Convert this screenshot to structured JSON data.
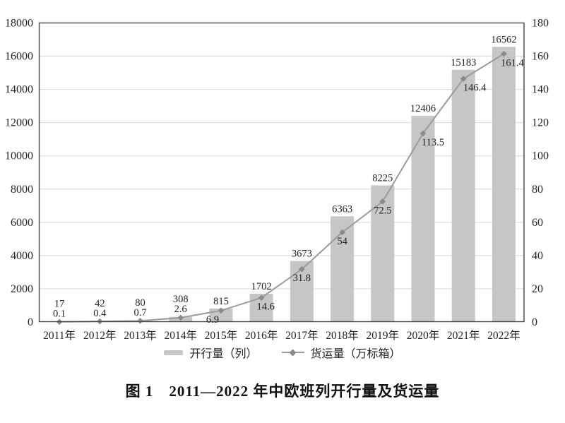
{
  "figure": {
    "caption": "图 1　2011—2022 年中欧班列开行量及货运量"
  },
  "legend": {
    "bar_label": "开行量（列）",
    "line_label": "货运量（万标箱）"
  },
  "chart_data": {
    "type": "combo-bar-line",
    "categories": [
      "2011年",
      "2012年",
      "2013年",
      "2014年",
      "2015年",
      "2016年",
      "2017年",
      "2018年",
      "2019年",
      "2020年",
      "2021年",
      "2022年"
    ],
    "series": [
      {
        "name": "开行量（列）",
        "type": "bar",
        "axis": "left",
        "values": [
          17,
          42,
          80,
          308,
          815,
          1702,
          3673,
          6363,
          8225,
          12406,
          15183,
          16562
        ],
        "color": "#c6c6c8"
      },
      {
        "name": "货运量（万标箱）",
        "type": "line",
        "axis": "right",
        "marker": "diamond",
        "values": [
          0.1,
          0.4,
          0.7,
          2.6,
          6.9,
          14.6,
          31.8,
          54,
          72.5,
          113.5,
          146.4,
          161.4
        ],
        "color": "#9b9b9b",
        "marker_color": "#898a8c"
      }
    ],
    "left_axis": {
      "min": 0,
      "max": 18000,
      "step": 2000,
      "ticks": [
        0,
        2000,
        4000,
        6000,
        8000,
        10000,
        12000,
        14000,
        16000,
        18000
      ]
    },
    "right_axis": {
      "min": 0,
      "max": 180,
      "step": 20,
      "ticks": [
        0,
        20,
        40,
        60,
        80,
        100,
        120,
        140,
        160,
        180
      ]
    },
    "grid": true,
    "data_labels": true,
    "legend_position": "bottom",
    "colors": {
      "grid": "#d8d8d8",
      "border": "#454545",
      "text": "#232323",
      "background": "#ffffff"
    }
  }
}
